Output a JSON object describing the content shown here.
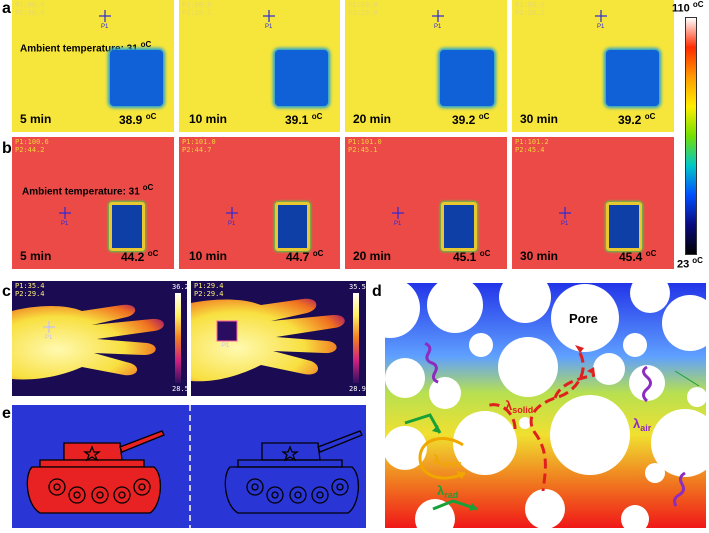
{
  "panels": {
    "a": "a",
    "b": "b",
    "c": "c",
    "d": "d",
    "e": "e"
  },
  "row_a": {
    "ambient": "Ambient temperature:  31 ",
    "ambient_unit": "oC",
    "frames": [
      {
        "readout": "P1:00.0\nP2:30.0",
        "time": "5 min",
        "temp": "38.9 ",
        "unit": "oC"
      },
      {
        "readout": "P1:00.0\nP2:29.1",
        "time": "10 min",
        "temp": "39.1 ",
        "unit": "oC"
      },
      {
        "readout": "P1:00.0\nP2:29.0",
        "time": "20 min",
        "temp": "39.2 ",
        "unit": "oC"
      },
      {
        "readout": "P1:00.0\nP2:29.2",
        "time": "30 min",
        "temp": "39.2 ",
        "unit": "oC"
      }
    ],
    "marker": "P1"
  },
  "row_b": {
    "ambient": "Ambient temperature:  31 ",
    "ambient_unit": "oC",
    "frames": [
      {
        "readout": "P1:100.6\nP2:44.2",
        "time": "5 min",
        "temp": "44.2 ",
        "unit": "oC"
      },
      {
        "readout": "P1:101.0\nP2:44.7",
        "time": "10 min",
        "temp": "44.7 ",
        "unit": "oC"
      },
      {
        "readout": "P1:101.0\nP2:45.1",
        "time": "20 min",
        "temp": "45.1 ",
        "unit": "oC"
      },
      {
        "readout": "P1:101.2\nP2:45.4",
        "time": "30 min",
        "temp": "45.4 ",
        "unit": "oC"
      }
    ],
    "marker": "P1"
  },
  "scale": {
    "max": "110 ",
    "min": "23 ",
    "unit": "oC",
    "colors": [
      "#ffffff",
      "#ff2a00",
      "#ff9b00",
      "#ffee00",
      "#74e000",
      "#00c8c8",
      "#0050ff",
      "#0a0a80",
      "#000000"
    ]
  },
  "row_c": {
    "left": {
      "readout": "P1:35.4\nP2:29.4",
      "top": "36.2",
      "bottom": "28.5",
      "marker": "P1"
    },
    "right": {
      "readout": "P1:29.4\nP2:29.4",
      "top": "35.5",
      "bottom": "28.9",
      "marker": "P1"
    }
  },
  "row_d": {
    "pore": "Pore",
    "lambda": "λ",
    "solid": "solid",
    "air": "air",
    "conv": "conv",
    "rad": "rad",
    "colors": {
      "solid": "#e0201e",
      "air": "#8c2cc0",
      "conv": "#f0a800",
      "rad": "#19a038"
    }
  },
  "row_e": {
    "bg": "#2a35d6"
  }
}
